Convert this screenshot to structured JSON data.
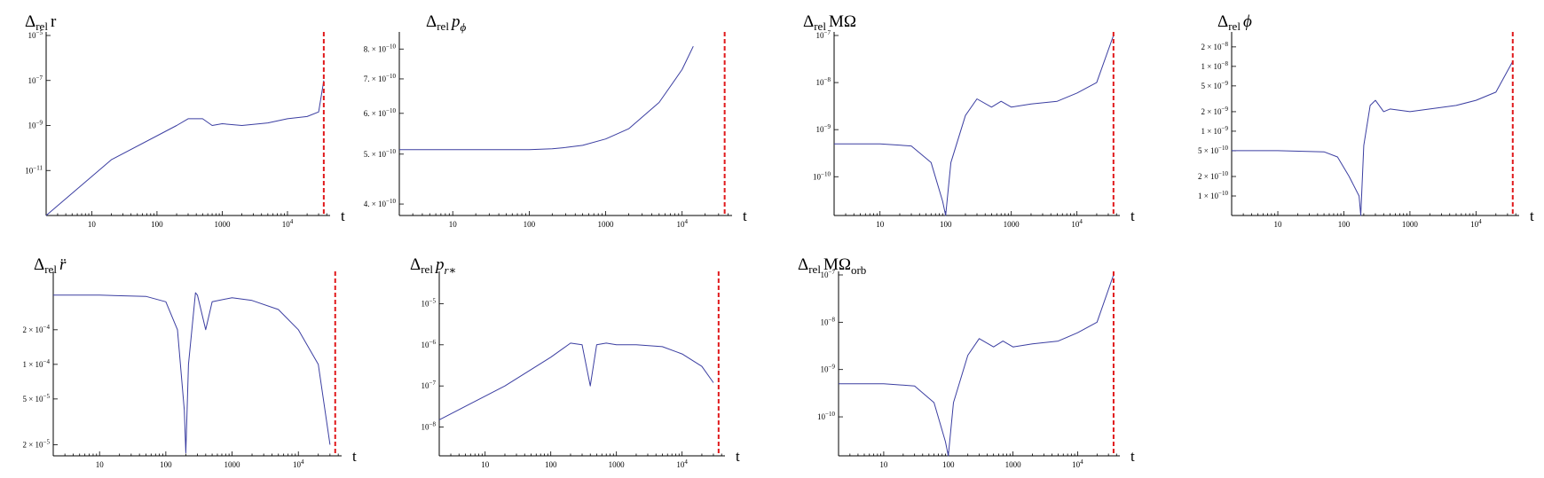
{
  "colors": {
    "series": "#3b3ea1",
    "marker": "#e0191c",
    "axis": "#000000"
  },
  "x_axis_label": "t",
  "chart_data": [
    {
      "type": "line",
      "log_x": true,
      "log_y": true,
      "title_main": "Δ",
      "title_sub": "rel",
      "title_tail": "r",
      "title_tail_style": "upright",
      "xlim": [
        2,
        45000
      ],
      "ylim": [
        1e-13,
        1e-05
      ],
      "x_ticks": [
        {
          "value": 10,
          "label": "10"
        },
        {
          "value": 100,
          "label": "100"
        },
        {
          "value": 1000,
          "label": "1000"
        },
        {
          "value": 10000,
          "label": "10",
          "sup": "4"
        }
      ],
      "y_ticks": [
        {
          "value": 1e-05,
          "label": "10",
          "sup": "−5"
        },
        {
          "value": 1e-07,
          "label": "10",
          "sup": "−7"
        },
        {
          "value": 1e-09,
          "label": "10",
          "sup": "−9"
        },
        {
          "value": 1e-11,
          "label": "10",
          "sup": "−11"
        }
      ],
      "marker_x": 36000,
      "series": [
        {
          "x": [
            2,
            20,
            200,
            300,
            500,
            700,
            1000,
            2000,
            5000,
            10000,
            20000,
            30000,
            36000
          ],
          "y": [
            1e-13,
            3e-11,
            1e-09,
            2e-09,
            2e-09,
            1e-09,
            1.2e-09,
            1e-09,
            1.3e-09,
            2e-09,
            2.5e-09,
            4e-09,
            1e-07
          ]
        }
      ]
    },
    {
      "type": "line",
      "log_x": true,
      "log_y": true,
      "title_main": "Δ",
      "title_sub": "rel",
      "title_tail": "p",
      "title_tail_sub": "ϕ",
      "title_tail_style": "italic",
      "xlim": [
        2,
        45000
      ],
      "ylim": [
        3.8e-10,
        8.5e-10
      ],
      "x_ticks": [
        {
          "value": 10,
          "label": "10"
        },
        {
          "value": 100,
          "label": "100"
        },
        {
          "value": 1000,
          "label": "1000"
        },
        {
          "value": 10000,
          "label": "10",
          "sup": "4"
        }
      ],
      "y_ticks": [
        {
          "value": 8e-10,
          "label": "8. × 10",
          "sup": "−10"
        },
        {
          "value": 7e-10,
          "label": "7. × 10",
          "sup": "−10"
        },
        {
          "value": 6e-10,
          "label": "6. × 10",
          "sup": "−10"
        },
        {
          "value": 5e-10,
          "label": "5. × 10",
          "sup": "−10"
        },
        {
          "value": 4e-10,
          "label": "4. × 10",
          "sup": "−10"
        }
      ],
      "marker_x": 36000,
      "series": [
        {
          "x": [
            2,
            10,
            100,
            200,
            300,
            500,
            1000,
            2000,
            5000,
            10000,
            14000
          ],
          "y": [
            5.1e-10,
            5.1e-10,
            5.1e-10,
            5.12e-10,
            5.15e-10,
            5.2e-10,
            5.35e-10,
            5.6e-10,
            6.3e-10,
            7.3e-10,
            8.1e-10
          ]
        }
      ]
    },
    {
      "type": "line",
      "log_x": true,
      "log_y": true,
      "title_main": "Δ",
      "title_sub": "rel",
      "title_tail": "MΩ",
      "title_tail_style": "upright",
      "xlim": [
        2,
        45000
      ],
      "ylim": [
        1.5e-11,
        1e-07
      ],
      "x_ticks": [
        {
          "value": 10,
          "label": "10"
        },
        {
          "value": 100,
          "label": "100"
        },
        {
          "value": 1000,
          "label": "1000"
        },
        {
          "value": 10000,
          "label": "10",
          "sup": "4"
        }
      ],
      "y_ticks": [
        {
          "value": 1e-07,
          "label": "10",
          "sup": "−7"
        },
        {
          "value": 1e-08,
          "label": "10",
          "sup": "−8"
        },
        {
          "value": 1e-09,
          "label": "10",
          "sup": "−9"
        },
        {
          "value": 1e-10,
          "label": "10",
          "sup": "−10"
        }
      ],
      "marker_x": 36000,
      "series": [
        {
          "x": [
            2,
            10,
            30,
            60,
            90,
            100,
            120,
            200,
            300,
            500,
            700,
            1000,
            2000,
            5000,
            10000,
            20000,
            36000
          ],
          "y": [
            5e-10,
            5e-10,
            4.5e-10,
            2e-10,
            3e-11,
            1.5e-11,
            2e-10,
            2e-09,
            4.5e-09,
            3e-09,
            4e-09,
            3e-09,
            3.5e-09,
            4e-09,
            6e-09,
            1e-08,
            1e-07
          ]
        }
      ]
    },
    {
      "type": "line",
      "log_x": true,
      "log_y": true,
      "title_main": "Δ",
      "title_sub": "rel",
      "title_tail": "ϕ",
      "title_tail_style": "italic",
      "xlim": [
        2,
        45000
      ],
      "ylim": [
        5e-11,
        3e-08
      ],
      "x_ticks": [
        {
          "value": 10,
          "label": "10"
        },
        {
          "value": 100,
          "label": "100"
        },
        {
          "value": 1000,
          "label": "1000"
        },
        {
          "value": 10000,
          "label": "10",
          "sup": "4"
        }
      ],
      "y_ticks": [
        {
          "value": 2e-08,
          "label": "2 × 10",
          "sup": "−8"
        },
        {
          "value": 1e-08,
          "label": "1 × 10",
          "sup": "−8"
        },
        {
          "value": 5e-09,
          "label": "5 × 10",
          "sup": "−9"
        },
        {
          "value": 2e-09,
          "label": "2 × 10",
          "sup": "−9"
        },
        {
          "value": 1e-09,
          "label": "1 × 10",
          "sup": "−9"
        },
        {
          "value": 5e-10,
          "label": "5 × 10",
          "sup": "−10"
        },
        {
          "value": 2e-10,
          "label": "2 × 10",
          "sup": "−10"
        },
        {
          "value": 1e-10,
          "label": "1 × 10",
          "sup": "−10"
        }
      ],
      "marker_x": 36000,
      "series": [
        {
          "x": [
            2,
            10,
            50,
            80,
            120,
            170,
            180,
            200,
            250,
            300,
            400,
            500,
            1000,
            2000,
            5000,
            10000,
            20000,
            36000
          ],
          "y": [
            5e-10,
            5e-10,
            4.8e-10,
            4e-10,
            2e-10,
            1e-10,
            5e-11,
            6e-10,
            2.5e-09,
            3e-09,
            2e-09,
            2.2e-09,
            2e-09,
            2.2e-09,
            2.5e-09,
            3e-09,
            4e-09,
            1.2e-08
          ]
        }
      ]
    },
    {
      "type": "line",
      "log_x": true,
      "log_y": true,
      "title_main": "Δ",
      "title_sub": "rel",
      "title_tail": "r̈",
      "title_tail_style": "italic",
      "xlim": [
        2,
        45000
      ],
      "ylim": [
        1.6e-05,
        0.0006
      ],
      "x_ticks": [
        {
          "value": 10,
          "label": "10"
        },
        {
          "value": 100,
          "label": "100"
        },
        {
          "value": 1000,
          "label": "1000"
        },
        {
          "value": 10000,
          "label": "10",
          "sup": "4"
        }
      ],
      "y_ticks": [
        {
          "value": 0.0002,
          "label": "2 × 10",
          "sup": "−4"
        },
        {
          "value": 0.0001,
          "label": "1 × 10",
          "sup": "−4"
        },
        {
          "value": 5e-05,
          "label": "5 × 10",
          "sup": "−5"
        },
        {
          "value": 2e-05,
          "label": "2 × 10",
          "sup": "−5"
        }
      ],
      "marker_x": 36000,
      "series": [
        {
          "x": [
            2,
            10,
            50,
            100,
            150,
            190,
            200,
            220,
            280,
            300,
            400,
            500,
            1000,
            2000,
            5000,
            10000,
            20000,
            30000
          ],
          "y": [
            0.0004,
            0.0004,
            0.00039,
            0.00035,
            0.0002,
            4e-05,
            1.7e-05,
            0.0001,
            0.00042,
            0.0004,
            0.0002,
            0.00035,
            0.00038,
            0.00036,
            0.0003,
            0.0002,
            0.0001,
            2e-05
          ]
        }
      ]
    },
    {
      "type": "line",
      "log_x": true,
      "log_y": true,
      "title_main": "Δ",
      "title_sub": "rel",
      "title_tail": "p",
      "title_tail_sub": "r∗",
      "title_tail_style": "italic",
      "xlim": [
        2,
        45000
      ],
      "ylim": [
        2e-09,
        5e-05
      ],
      "x_ticks": [
        {
          "value": 10,
          "label": "10"
        },
        {
          "value": 100,
          "label": "100"
        },
        {
          "value": 1000,
          "label": "1000"
        },
        {
          "value": 10000,
          "label": "10",
          "sup": "4"
        }
      ],
      "y_ticks": [
        {
          "value": 1e-05,
          "label": "10",
          "sup": "−5"
        },
        {
          "value": 1e-06,
          "label": "10",
          "sup": "−6"
        },
        {
          "value": 1e-07,
          "label": "10",
          "sup": "−7"
        },
        {
          "value": 1e-08,
          "label": "10",
          "sup": "−8"
        }
      ],
      "marker_x": 36000,
      "series": [
        {
          "x": [
            2,
            20,
            100,
            200,
            300,
            400,
            500,
            700,
            1000,
            2000,
            5000,
            10000,
            20000,
            30000
          ],
          "y": [
            1.5e-08,
            1e-07,
            5e-07,
            1.1e-06,
            1e-06,
            1e-07,
            1e-06,
            1.1e-06,
            1e-06,
            1e-06,
            9e-07,
            6e-07,
            3e-07,
            1.2e-07
          ]
        }
      ]
    },
    {
      "type": "line",
      "log_x": true,
      "log_y": true,
      "title_main": "Δ",
      "title_sub": "rel",
      "title_tail": "MΩ",
      "title_tail_sub": "orb",
      "title_tail_style": "upright",
      "xlim": [
        2,
        45000
      ],
      "ylim": [
        1.5e-11,
        1e-07
      ],
      "x_ticks": [
        {
          "value": 10,
          "label": "10"
        },
        {
          "value": 100,
          "label": "100"
        },
        {
          "value": 1000,
          "label": "1000"
        },
        {
          "value": 10000,
          "label": "10",
          "sup": "4"
        }
      ],
      "y_ticks": [
        {
          "value": 1e-07,
          "label": "10",
          "sup": "−7"
        },
        {
          "value": 1e-08,
          "label": "10",
          "sup": "−8"
        },
        {
          "value": 1e-09,
          "label": "10",
          "sup": "−9"
        },
        {
          "value": 1e-10,
          "label": "10",
          "sup": "−10"
        }
      ],
      "marker_x": 36000,
      "series": [
        {
          "x": [
            2,
            10,
            30,
            60,
            90,
            100,
            120,
            200,
            300,
            500,
            700,
            1000,
            2000,
            5000,
            10000,
            20000,
            36000
          ],
          "y": [
            5e-10,
            5e-10,
            4.5e-10,
            2e-10,
            3e-11,
            1.5e-11,
            2e-10,
            2e-09,
            4.5e-09,
            3e-09,
            4e-09,
            3e-09,
            3.5e-09,
            4e-09,
            6e-09,
            1e-08,
            1e-07
          ]
        }
      ]
    }
  ]
}
